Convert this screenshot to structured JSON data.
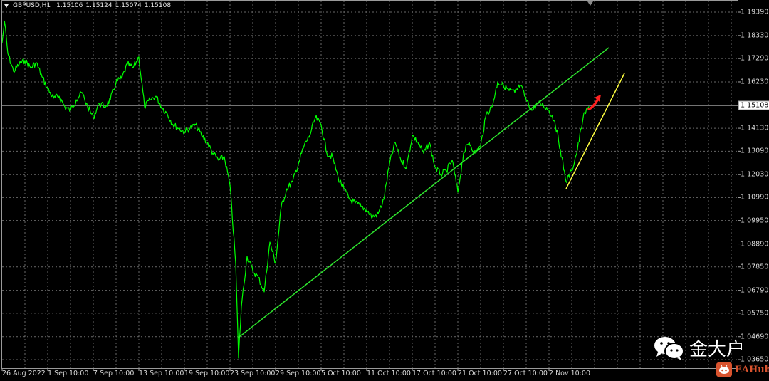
{
  "header": {
    "symbol": "GBPUSD,H1",
    "open": "1.15106",
    "high": "1.15124",
    "low": "1.15074",
    "close": "1.15108"
  },
  "current_price_label": "1.15108",
  "watermark": {
    "text": "金大户",
    "icon": "wechat-icon",
    "brand": "EAHub"
  },
  "colors": {
    "background": "#000000",
    "price_line": "#00ff00",
    "trendline_main": "#2ee62e",
    "trendline_recent": "#ffff40",
    "arrow": "#ff2020",
    "grid": "#6a6a6a",
    "current_price_line": "#9a9a9a"
  },
  "chart_data": {
    "type": "line",
    "title": "GBPUSD,H1",
    "xlabel": "",
    "ylabel": "",
    "ylim": [
      1.0365,
      1.1939
    ],
    "grid": true,
    "y_ticks": [
      "1.19390",
      "1.18330",
      "1.17290",
      "1.16230",
      "1.14130",
      "1.13090",
      "1.12030",
      "1.10990",
      "1.09950",
      "1.08890",
      "1.07850",
      "1.06790",
      "1.05750",
      "1.04690",
      "1.03650"
    ],
    "x_ticks": [
      "26 Aug 2022",
      "1 Sep 10:00",
      "7 Sep 10:00",
      "13 Sep 10:00",
      "19 Sep 10:00",
      "23 Sep 10:00",
      "29 Sep 10:00",
      "5 Oct 10:00",
      "11 Oct 10:00",
      "17 Oct 10:00",
      "21 Oct 10:00",
      "27 Oct 10:00",
      "2 Nov 10:00"
    ],
    "current_price": 1.15108,
    "series": [
      {
        "points": [
          [
            "2022-08-26 10:00",
            1.18
          ],
          [
            "2022-08-26 15:00",
            1.1897
          ],
          [
            "2022-08-26 22:00",
            1.1752
          ],
          [
            "2022-08-29 10:00",
            1.1671
          ],
          [
            "2022-08-29 22:00",
            1.1704
          ],
          [
            "2022-08-30 10:00",
            1.172
          ],
          [
            "2022-08-30 22:00",
            1.1687
          ],
          [
            "2022-08-31 10:00",
            1.171
          ],
          [
            "2022-08-31 22:00",
            1.1646
          ],
          [
            "2022-09-01 10:00",
            1.1591
          ],
          [
            "2022-09-01 22:00",
            1.1549
          ],
          [
            "2022-09-02 10:00",
            1.1558
          ],
          [
            "2022-09-02 22:00",
            1.151
          ],
          [
            "2022-09-05 10:00",
            1.1494
          ],
          [
            "2022-09-05 22:00",
            1.1542
          ],
          [
            "2022-09-06 10:00",
            1.1575
          ],
          [
            "2022-09-06 22:00",
            1.151
          ],
          [
            "2022-09-07 10:00",
            1.1462
          ],
          [
            "2022-09-07 22:00",
            1.1526
          ],
          [
            "2022-09-08 10:00",
            1.151
          ],
          [
            "2022-09-08 22:00",
            1.1542
          ],
          [
            "2022-09-09 10:00",
            1.1623
          ],
          [
            "2022-09-09 22:00",
            1.1639
          ],
          [
            "2022-09-12 10:00",
            1.1704
          ],
          [
            "2022-09-12 22:00",
            1.1687
          ],
          [
            "2022-09-13 10:00",
            1.1736
          ],
          [
            "2022-09-13 22:00",
            1.151
          ],
          [
            "2022-09-14 10:00",
            1.1542
          ],
          [
            "2022-09-14 22:00",
            1.1558
          ],
          [
            "2022-09-15 10:00",
            1.151
          ],
          [
            "2022-09-15 22:00",
            1.1478
          ],
          [
            "2022-09-16 10:00",
            1.1429
          ],
          [
            "2022-09-16 22:00",
            1.1413
          ],
          [
            "2022-09-19 10:00",
            1.1397
          ],
          [
            "2022-09-19 22:00",
            1.1413
          ],
          [
            "2022-09-20 10:00",
            1.1429
          ],
          [
            "2022-09-20 22:00",
            1.1381
          ],
          [
            "2022-09-21 10:00",
            1.1349
          ],
          [
            "2022-09-21 22:00",
            1.13
          ],
          [
            "2022-09-22 10:00",
            1.1268
          ],
          [
            "2022-09-22 22:00",
            1.1284
          ],
          [
            "2022-09-23 10:00",
            1.1155
          ],
          [
            "2022-09-23 22:00",
            1.0801
          ],
          [
            "2022-09-26 04:00",
            1.0372
          ],
          [
            "2022-09-26 10:00",
            1.0607
          ],
          [
            "2022-09-26 22:00",
            1.0833
          ],
          [
            "2022-09-27 10:00",
            1.0768
          ],
          [
            "2022-09-27 22:00",
            1.0736
          ],
          [
            "2022-09-28 10:00",
            1.0672
          ],
          [
            "2022-09-28 22:00",
            1.0897
          ],
          [
            "2022-09-29 10:00",
            1.0801
          ],
          [
            "2022-09-29 22:00",
            1.1059
          ],
          [
            "2022-09-30 10:00",
            1.1139
          ],
          [
            "2022-09-30 22:00",
            1.1171
          ],
          [
            "2022-10-03 10:00",
            1.1252
          ],
          [
            "2022-10-03 22:00",
            1.1333
          ],
          [
            "2022-10-04 10:00",
            1.1381
          ],
          [
            "2022-10-04 22:00",
            1.1462
          ],
          [
            "2022-10-05 10:00",
            1.1429
          ],
          [
            "2022-10-05 22:00",
            1.13
          ],
          [
            "2022-10-06 10:00",
            1.1284
          ],
          [
            "2022-10-06 22:00",
            1.1188
          ],
          [
            "2022-10-07 10:00",
            1.1139
          ],
          [
            "2022-10-07 22:00",
            1.1091
          ],
          [
            "2022-10-10 10:00",
            1.1075
          ],
          [
            "2022-10-10 22:00",
            1.1059
          ],
          [
            "2022-10-11 10:00",
            1.1043
          ],
          [
            "2022-10-11 22:00",
            1.101
          ],
          [
            "2022-10-12 10:00",
            1.1026
          ],
          [
            "2022-10-12 22:00",
            1.1091
          ],
          [
            "2022-10-13 10:00",
            1.1252
          ],
          [
            "2022-10-13 22:00",
            1.1349
          ],
          [
            "2022-10-14 10:00",
            1.1268
          ],
          [
            "2022-10-14 22:00",
            1.1236
          ],
          [
            "2022-10-17 10:00",
            1.1381
          ],
          [
            "2022-10-17 22:00",
            1.1349
          ],
          [
            "2022-10-18 10:00",
            1.13
          ],
          [
            "2022-10-18 22:00",
            1.1349
          ],
          [
            "2022-10-19 10:00",
            1.1236
          ],
          [
            "2022-10-19 22:00",
            1.1204
          ],
          [
            "2022-10-20 10:00",
            1.122
          ],
          [
            "2022-10-20 22:00",
            1.1268
          ],
          [
            "2022-10-21 10:00",
            1.1123
          ],
          [
            "2022-10-21 22:00",
            1.13
          ],
          [
            "2022-10-24 10:00",
            1.1349
          ],
          [
            "2022-10-24 22:00",
            1.13
          ],
          [
            "2022-10-25 10:00",
            1.1333
          ],
          [
            "2022-10-25 22:00",
            1.1478
          ],
          [
            "2022-10-26 10:00",
            1.151
          ],
          [
            "2022-10-26 22:00",
            1.1623
          ],
          [
            "2022-10-27 10:00",
            1.1607
          ],
          [
            "2022-10-27 22:00",
            1.1584
          ],
          [
            "2022-10-28 10:00",
            1.1575
          ],
          [
            "2022-10-28 22:00",
            1.1607
          ],
          [
            "2022-10-31 10:00",
            1.1542
          ],
          [
            "2022-10-31 22:00",
            1.1494
          ],
          [
            "2022-11-01 10:00",
            1.1526
          ],
          [
            "2022-11-01 22:00",
            1.1517
          ],
          [
            "2022-11-02 10:00",
            1.1494
          ],
          [
            "2022-11-02 22:00",
            1.1446
          ],
          [
            "2022-11-03 10:00",
            1.1317
          ],
          [
            "2022-11-03 22:00",
            1.1171
          ],
          [
            "2022-11-04 10:00",
            1.122
          ],
          [
            "2022-11-04 22:00",
            1.1317
          ],
          [
            "2022-11-07 10:00",
            1.1462
          ],
          [
            "2022-11-07 22:00",
            1.1511
          ]
        ]
      }
    ],
    "trendlines": [
      {
        "color": "#2ee62e",
        "from": [
          "2022-09-26 02:00",
          1.0462
        ],
        "to": [
          "2022-11-09 16:00",
          1.1778
        ]
      },
      {
        "color": "#ffff40",
        "from": [
          "2022-11-03 22:00",
          1.1139
        ],
        "to": [
          "2022-11-11 01:00",
          1.1662
        ]
      }
    ],
    "arrow": {
      "color": "#ff2020",
      "from": [
        "2022-11-07 22:00",
        1.15
      ],
      "to": [
        "2022-11-08 22:00",
        1.1559
      ],
      "direction": "up"
    }
  }
}
